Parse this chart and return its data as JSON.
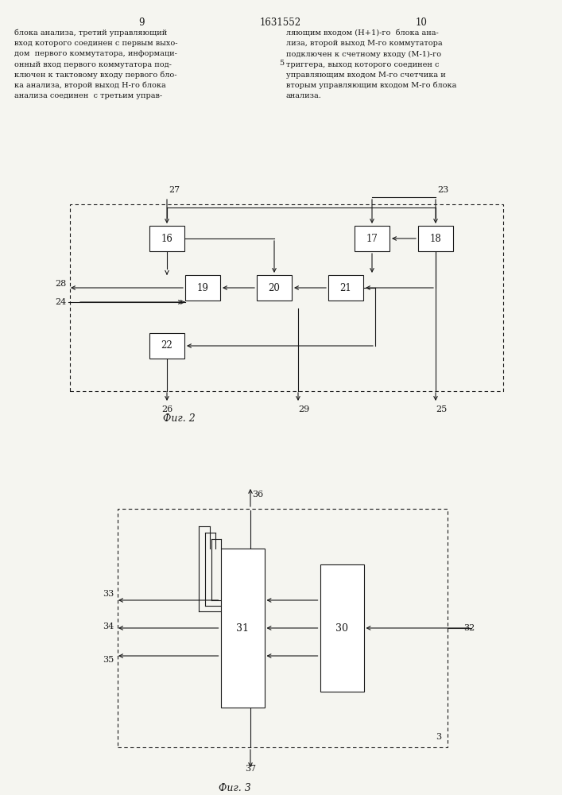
{
  "page_number_left": "9",
  "page_number_right": "10",
  "patent_number": "1631552",
  "text_left": [
    "блока анализа, третий управляющий",
    "вход которого соединен с первым выхо-",
    "дом  первого коммутатора, информаци-",
    "онный вход первого коммутатора под-",
    "ключен к тактовому входу первого бло-",
    "ка анализа, второй выход Н-го блока",
    "анализа соединен  с третьим управ-"
  ],
  "text_right": [
    "ляющим входом (Н+1)-го  блока ана-",
    "лиза, второй выход М-го коммутатора",
    "подключен к счетному входу (М-1)-го",
    "триггера, выход которого соединен с",
    "управляющим входом М-го счетчика и",
    "вторым управляющим входом М-го блока",
    "анализа."
  ],
  "fig2_label": "Фиг. 2",
  "fig3_label": "Фиг. 3",
  "bg_color": "#f5f5f0",
  "line_color": "#1a1a1a",
  "text_color": "#1a1a1a"
}
